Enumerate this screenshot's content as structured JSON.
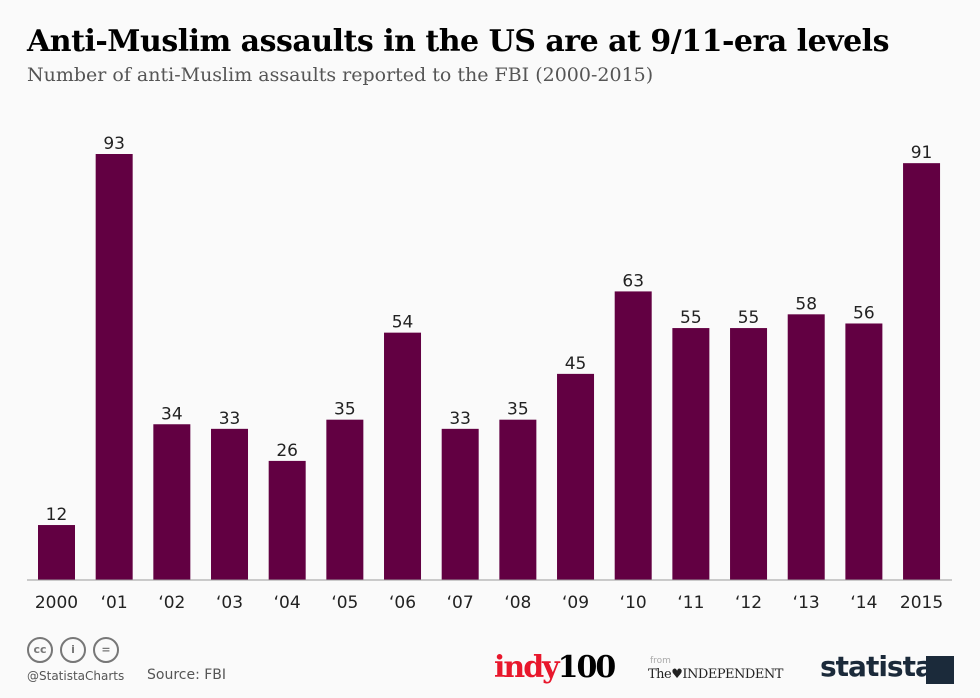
{
  "chart_data": {
    "type": "bar",
    "title": "Anti-Muslim assaults in the US are at 9/11-era levels",
    "subtitle": "Number of anti-Muslim assaults reported to the FBI (2000-2015)",
    "categories": [
      "2000",
      "‘01",
      "‘02",
      "‘03",
      "‘04",
      "‘05",
      "‘06",
      "‘07",
      "‘08",
      "‘09",
      "‘10",
      "‘11",
      "‘12",
      "‘13",
      "‘14",
      "2015"
    ],
    "values": [
      12,
      93,
      34,
      33,
      26,
      35,
      54,
      33,
      35,
      45,
      63,
      55,
      55,
      58,
      56,
      91
    ],
    "ylim": [
      0,
      93
    ],
    "grid": false,
    "bar_color": "#620042",
    "data_labels": true
  },
  "footer": {
    "handle": "@StatistaCharts",
    "source": "Source: FBI",
    "license_icons": [
      "cc-icon",
      "by-icon",
      "nd-icon"
    ],
    "logos": {
      "indy": "indy",
      "indy_num": "100",
      "from": "from",
      "independent": "The♥INDEPENDENT",
      "statista": "statista"
    }
  }
}
